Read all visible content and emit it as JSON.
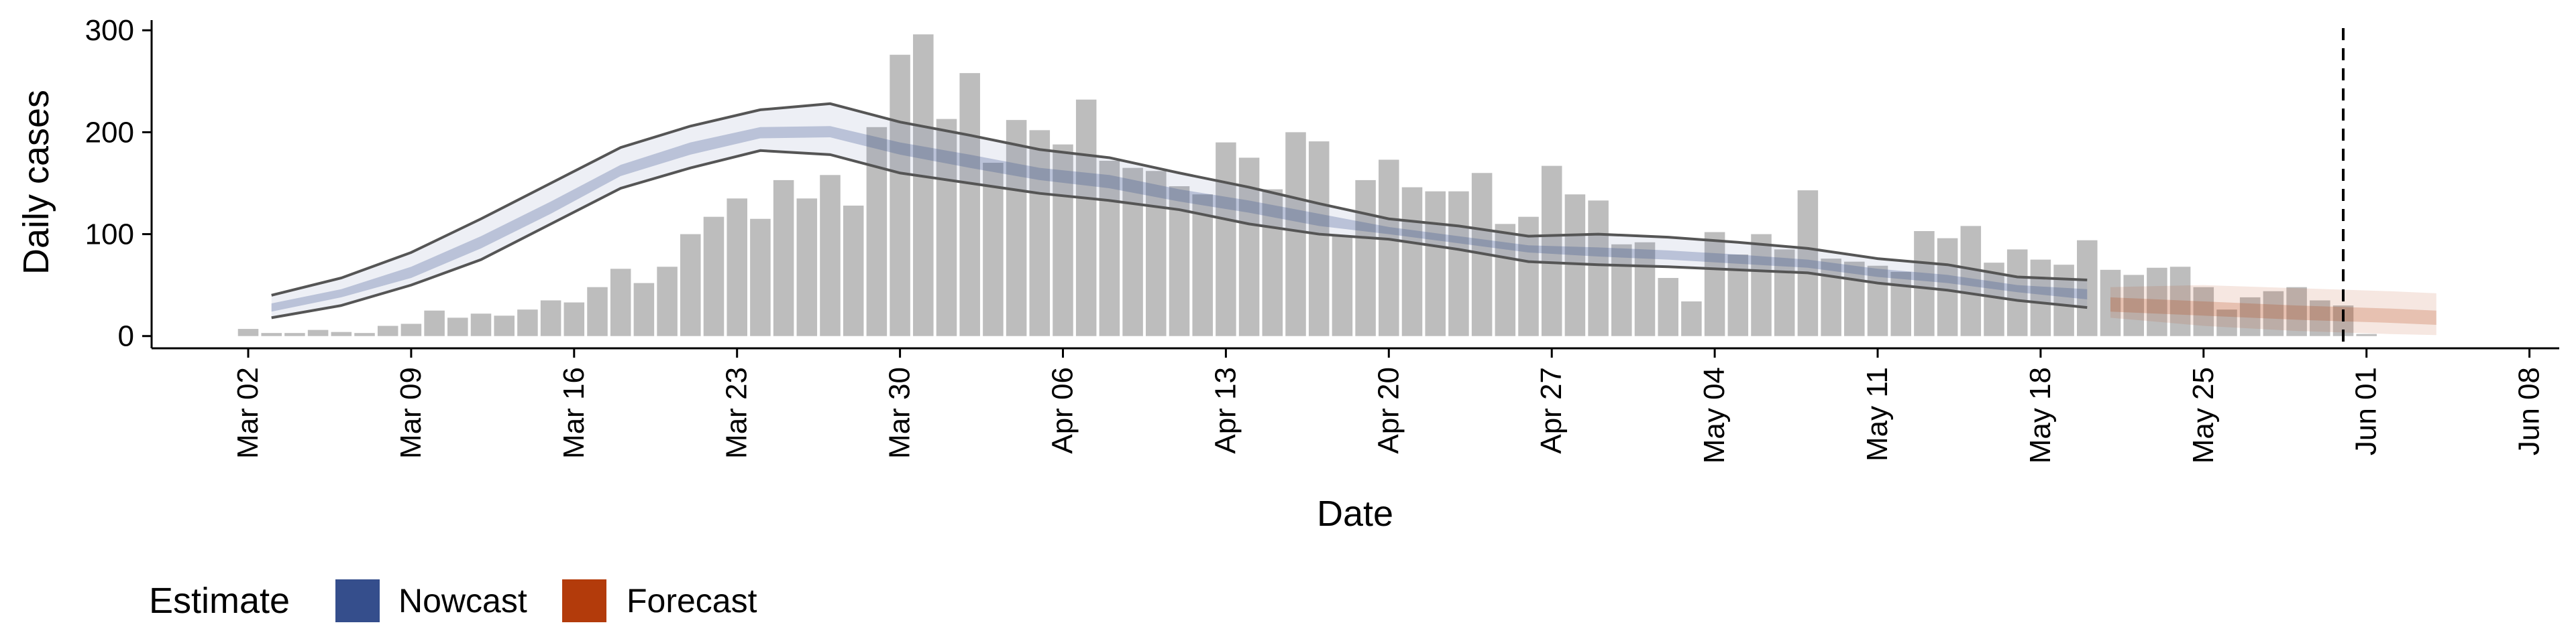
{
  "chart_data": {
    "type": "bar",
    "xlabel": "Date",
    "ylabel": "Daily cases",
    "ylim": [
      -12,
      310
    ],
    "yticks": [
      0,
      100,
      200,
      300
    ],
    "x_start": "2020-03-02",
    "xticks": [
      "Mar 02",
      "Mar 09",
      "Mar 16",
      "Mar 23",
      "Mar 30",
      "Apr 06",
      "Apr 13",
      "Apr 20",
      "Apr 27",
      "May 04",
      "May 11",
      "May 18",
      "May 25",
      "Jun 01",
      "Jun 08"
    ],
    "vline_date": "2020-05-31",
    "grid": false,
    "legend": {
      "title": "Estimate",
      "position": "bottom-left",
      "items": [
        {
          "label": "Nowcast",
          "color": "#354e8c"
        },
        {
          "label": "Forecast",
          "color": "#b33b0b"
        }
      ]
    },
    "colors": {
      "bars": "#bdbdbd",
      "nowcast": "#354e8c",
      "forecast": "#b33b0b",
      "outer_line": "#555555"
    },
    "bars": {
      "start_date": "2020-03-02",
      "values": [
        7,
        3,
        3,
        6,
        4,
        3,
        10,
        12,
        25,
        18,
        22,
        20,
        26,
        35,
        33,
        48,
        66,
        52,
        68,
        100,
        117,
        135,
        115,
        153,
        135,
        158,
        128,
        205,
        276,
        296,
        213,
        258,
        170,
        212,
        202,
        188,
        232,
        172,
        165,
        162,
        147,
        139,
        190,
        175,
        144,
        200,
        191,
        98,
        153,
        173,
        146,
        142,
        142,
        160,
        110,
        117,
        167,
        139,
        133,
        90,
        92,
        57,
        34,
        102,
        80,
        100,
        85,
        143,
        76,
        73,
        69,
        63,
        103,
        96,
        108,
        72,
        85,
        75,
        70,
        94,
        65,
        60,
        67,
        68,
        48,
        26,
        38,
        44,
        48,
        35,
        30,
        2
      ]
    },
    "nowcast": {
      "dates": [
        "2020-03-03",
        "2020-03-06",
        "2020-03-09",
        "2020-03-12",
        "2020-03-15",
        "2020-03-18",
        "2020-03-21",
        "2020-03-24",
        "2020-03-27",
        "2020-03-30",
        "2020-04-02",
        "2020-04-05",
        "2020-04-08",
        "2020-04-11",
        "2020-04-14",
        "2020-04-17",
        "2020-04-20",
        "2020-04-23",
        "2020-04-26",
        "2020-04-29",
        "2020-05-02",
        "2020-05-05",
        "2020-05-08",
        "2020-05-11",
        "2020-05-14",
        "2020-05-17",
        "2020-05-20"
      ],
      "upper90": [
        40,
        57,
        82,
        115,
        150,
        185,
        206,
        222,
        228,
        210,
        197,
        183,
        175,
        160,
        146,
        130,
        115,
        108,
        98,
        100,
        97,
        92,
        86,
        76,
        70,
        58,
        55
      ],
      "lower90": [
        18,
        30,
        50,
        75,
        110,
        145,
        165,
        182,
        178,
        160,
        150,
        140,
        133,
        124,
        110,
        100,
        95,
        85,
        73,
        70,
        68,
        65,
        62,
        52,
        45,
        35,
        28
      ],
      "upper50": [
        32,
        46,
        68,
        98,
        132,
        168,
        190,
        205,
        206,
        190,
        178,
        165,
        158,
        144,
        133,
        120,
        107,
        98,
        89,
        87,
        84,
        80,
        75,
        66,
        60,
        50,
        46
      ],
      "lower50": [
        24,
        38,
        57,
        86,
        120,
        157,
        178,
        194,
        195,
        178,
        165,
        153,
        145,
        132,
        121,
        108,
        100,
        91,
        82,
        78,
        75,
        71,
        67,
        58,
        52,
        43,
        36
      ]
    },
    "forecast": {
      "dates": [
        "2020-05-21",
        "2020-05-25",
        "2020-05-29",
        "2020-06-02",
        "2020-06-04"
      ],
      "upper90": [
        48,
        50,
        47,
        44,
        42
      ],
      "lower90": [
        18,
        10,
        5,
        2,
        1
      ],
      "upper50": [
        38,
        34,
        30,
        27,
        25
      ],
      "lower50": [
        24,
        20,
        16,
        13,
        11
      ]
    }
  }
}
